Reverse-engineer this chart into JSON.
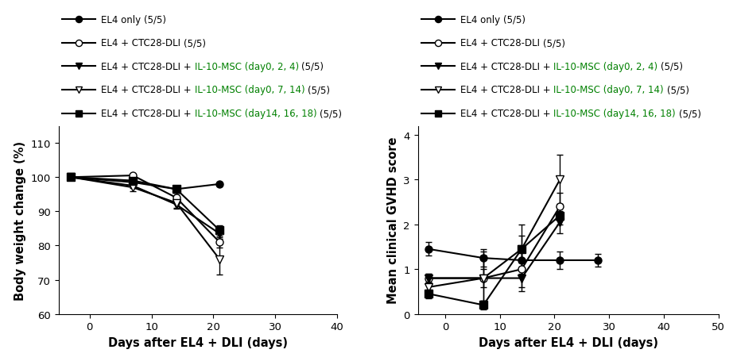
{
  "left_chart": {
    "xlabel": "Days after EL4 + DLI (days)",
    "ylabel": "Body weight change (%)",
    "xlim": [
      -5,
      40
    ],
    "ylim": [
      60,
      115
    ],
    "xticks": [
      0,
      10,
      20,
      30,
      40
    ],
    "yticks": [
      60,
      70,
      80,
      90,
      100,
      110
    ],
    "series": [
      {
        "lb": "EL4 only ",
        "lg": "",
        "ls": "(5/5)",
        "x": [
          -3,
          7,
          14,
          21
        ],
        "y": [
          100,
          98.5,
          96.5,
          98.0
        ],
        "yerr": [
          0.01,
          0.5,
          1.0,
          0.5
        ],
        "marker": "o",
        "filled": true
      },
      {
        "lb": "EL4 + CTC28-DLI ",
        "lg": "",
        "ls": "(5/5)",
        "x": [
          -3,
          7,
          14,
          21
        ],
        "y": [
          100,
          100.5,
          94.0,
          81.0
        ],
        "yerr": [
          0.01,
          0.5,
          1.5,
          1.5
        ],
        "marker": "o",
        "filled": false
      },
      {
        "lb": "EL4 + CTC28-DLI + ",
        "lg": "IL-10-MSC (day0, 2, 4) ",
        "ls": "(5/5)",
        "x": [
          -3,
          7,
          14,
          21
        ],
        "y": [
          100,
          97.5,
          92.0,
          83.5
        ],
        "yerr": [
          0.01,
          0.8,
          1.2,
          1.5
        ],
        "marker": "v",
        "filled": true
      },
      {
        "lb": "EL4 + CTC28-DLI + ",
        "lg": "IL-10-MSC (day0, 7, 14) ",
        "ls": "(5/5)",
        "x": [
          -3,
          7,
          14,
          21
        ],
        "y": [
          100,
          97.0,
          92.5,
          76.0
        ],
        "yerr": [
          0.01,
          1.0,
          1.5,
          4.5
        ],
        "marker": "v",
        "filled": false
      },
      {
        "lb": "EL4 + CTC28-DLI + ",
        "lg": "IL-10-MSC (day14, 16, 18) ",
        "ls": "(5/5)",
        "x": [
          -3,
          7,
          14,
          21
        ],
        "y": [
          100,
          99.0,
          96.5,
          84.5
        ],
        "yerr": [
          0.01,
          0.5,
          1.0,
          1.5
        ],
        "marker": "s",
        "filled": true
      }
    ]
  },
  "right_chart": {
    "xlabel": "Days after EL4 + DLI (days)",
    "ylabel": "Mean clinical GVHD score",
    "xlim": [
      -5,
      50
    ],
    "ylim": [
      0,
      4.2
    ],
    "xticks": [
      0,
      10,
      20,
      30,
      40,
      50
    ],
    "yticks": [
      0,
      1,
      2,
      3,
      4
    ],
    "series": [
      {
        "lb": "EL4 only ",
        "lg": "",
        "ls": "(5/5)",
        "x": [
          -3,
          7,
          14,
          21,
          28
        ],
        "y": [
          1.45,
          1.25,
          1.2,
          1.2,
          1.2
        ],
        "yerr": [
          0.15,
          0.2,
          0.2,
          0.2,
          0.15
        ],
        "marker": "o",
        "filled": true
      },
      {
        "lb": "EL4 + CTC28-DLI ",
        "lg": "",
        "ls": "(5/5)",
        "x": [
          -3,
          7,
          14,
          21
        ],
        "y": [
          0.8,
          0.8,
          1.0,
          2.4
        ],
        "yerr": [
          0.1,
          0.5,
          0.5,
          0.3
        ],
        "marker": "o",
        "filled": false
      },
      {
        "lb": "EL4 + CTC28-DLI + ",
        "lg": "IL-10-MSC (day0, 2, 4) ",
        "ls": "(5/5)",
        "x": [
          -3,
          7,
          14,
          21
        ],
        "y": [
          0.8,
          0.8,
          0.8,
          2.05
        ],
        "yerr": [
          0.1,
          0.2,
          0.2,
          0.25
        ],
        "marker": "v",
        "filled": true
      },
      {
        "lb": "EL4 + CTC28-DLI + ",
        "lg": "IL-10-MSC (day0, 7, 14) ",
        "ls": "(5/5)",
        "x": [
          -3,
          7,
          14,
          21
        ],
        "y": [
          0.6,
          0.8,
          1.45,
          3.0
        ],
        "yerr": [
          0.1,
          0.6,
          0.55,
          0.55
        ],
        "marker": "v",
        "filled": false
      },
      {
        "lb": "EL4 + CTC28-DLI + ",
        "lg": "IL-10-MSC (day14, 16, 18) ",
        "ls": "(5/5)",
        "x": [
          -3,
          7,
          14,
          21
        ],
        "y": [
          0.45,
          0.2,
          1.45,
          2.2
        ],
        "yerr": [
          0.1,
          0.1,
          0.3,
          0.2
        ],
        "marker": "s",
        "filled": true
      }
    ]
  },
  "green_color": "#008000",
  "legend_fontsize": 8.5,
  "axis_label_fontsize": 10.5,
  "tick_fontsize": 9.5,
  "linewidth": 1.5,
  "markersize": 6.5,
  "capsize": 3,
  "elinewidth": 1.0
}
